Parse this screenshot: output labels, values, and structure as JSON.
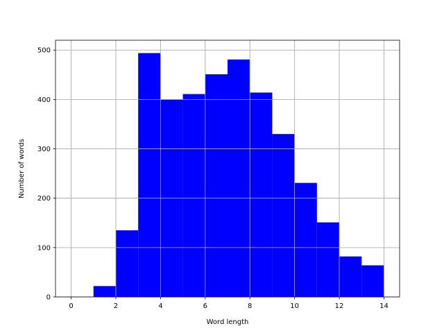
{
  "chart_data": {
    "type": "bar",
    "xlabel": "Word length",
    "ylabel": "Number of words",
    "xlim": [
      -0.7,
      14.7
    ],
    "ylim": [
      0,
      520
    ],
    "grid": true,
    "bar_color": "#0000ff",
    "bins": [
      {
        "x0": 1,
        "x1": 2,
        "value": 22
      },
      {
        "x0": 2,
        "x1": 3,
        "value": 135
      },
      {
        "x0": 3,
        "x1": 4,
        "value": 494
      },
      {
        "x0": 4,
        "x1": 5,
        "value": 400
      },
      {
        "x0": 5,
        "x1": 6,
        "value": 411
      },
      {
        "x0": 6,
        "x1": 7,
        "value": 451
      },
      {
        "x0": 7,
        "x1": 8,
        "value": 481
      },
      {
        "x0": 8,
        "x1": 9,
        "value": 414
      },
      {
        "x0": 9,
        "x1": 10,
        "value": 330
      },
      {
        "x0": 10,
        "x1": 11,
        "value": 231
      },
      {
        "x0": 11,
        "x1": 12,
        "value": 151
      },
      {
        "x0": 12,
        "x1": 13,
        "value": 82
      },
      {
        "x0": 13,
        "x1": 14,
        "value": 64
      }
    ],
    "xticks": [
      0,
      2,
      4,
      6,
      8,
      10,
      12,
      14
    ],
    "yticks": [
      0,
      100,
      200,
      300,
      400,
      500
    ]
  }
}
